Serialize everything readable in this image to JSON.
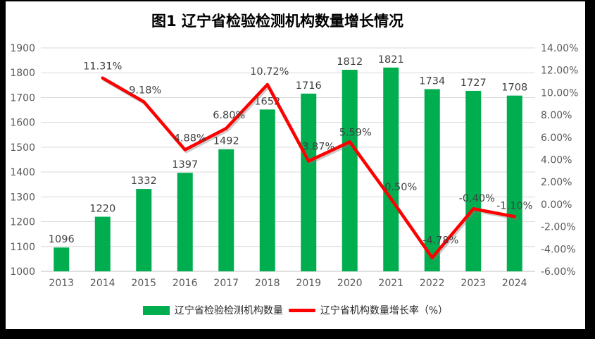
{
  "frame": {
    "background": "#000000",
    "panel_background": "#ffffff"
  },
  "chart_data": {
    "type": "bar",
    "subtype": "combo bar+line, dual axis",
    "title": "图1 辽宁省检验检测机构数量增长情况",
    "categories": [
      "2013",
      "2014",
      "2015",
      "2016",
      "2017",
      "2018",
      "2019",
      "2020",
      "2021",
      "2022",
      "2023",
      "2024"
    ],
    "series": [
      {
        "name": "辽宁省检验检测机构数量",
        "type": "bar",
        "axis": "left",
        "color": "#00AE50",
        "values": [
          1096,
          1220,
          1332,
          1397,
          1492,
          1652,
          1716,
          1812,
          1821,
          1734,
          1727,
          1708
        ],
        "labels": [
          "1096",
          "1220",
          "1332",
          "1397",
          "1492",
          "1652",
          "1716",
          "1812",
          "1821",
          "1734",
          "1727",
          "1708"
        ]
      },
      {
        "name": "辽宁省机构数量增长率（%）",
        "type": "line",
        "axis": "right",
        "color": "#FE0000",
        "values": [
          null,
          11.31,
          9.18,
          4.88,
          6.8,
          10.72,
          3.87,
          5.59,
          0.5,
          -4.78,
          -0.4,
          -1.1
        ],
        "labels": [
          null,
          "11.31%",
          "9.18%",
          "4.88%",
          "6.80%",
          "10.72%",
          "3.87%",
          "5.59%",
          "0.50%",
          "-4.78%",
          "-0.40%",
          "-1.10%"
        ]
      }
    ],
    "left_axis": {
      "min": 1000,
      "max": 1900,
      "step": 100,
      "tick_labels": [
        "1000",
        "1100",
        "1200",
        "1300",
        "1400",
        "1500",
        "1600",
        "1700",
        "1800",
        "1900"
      ]
    },
    "right_axis": {
      "min": -6,
      "max": 14,
      "step": 2,
      "tick_labels": [
        "-6.00%",
        "-4.00%",
        "-2.00%",
        "0.00%",
        "2.00%",
        "4.00%",
        "6.00%",
        "8.00%",
        "10.00%",
        "12.00%",
        "14.00%"
      ]
    },
    "grid": true,
    "legend_position": "bottom",
    "colors": {
      "bar": "#00AE50",
      "line": "#FE0000",
      "gridline": "#D9D9D9",
      "axis_line": "#BFBFBF",
      "tick_text": "#595959",
      "data_label": "#404040",
      "title_text": "#000000"
    }
  },
  "legend": {
    "items": [
      {
        "label": "辽宁省检验检测机构数量",
        "marker": "bar-swatch",
        "color": "#00AE50"
      },
      {
        "label": "辽宁省机构数量增长率（%）",
        "marker": "line-swatch",
        "color": "#FE0000"
      }
    ]
  }
}
